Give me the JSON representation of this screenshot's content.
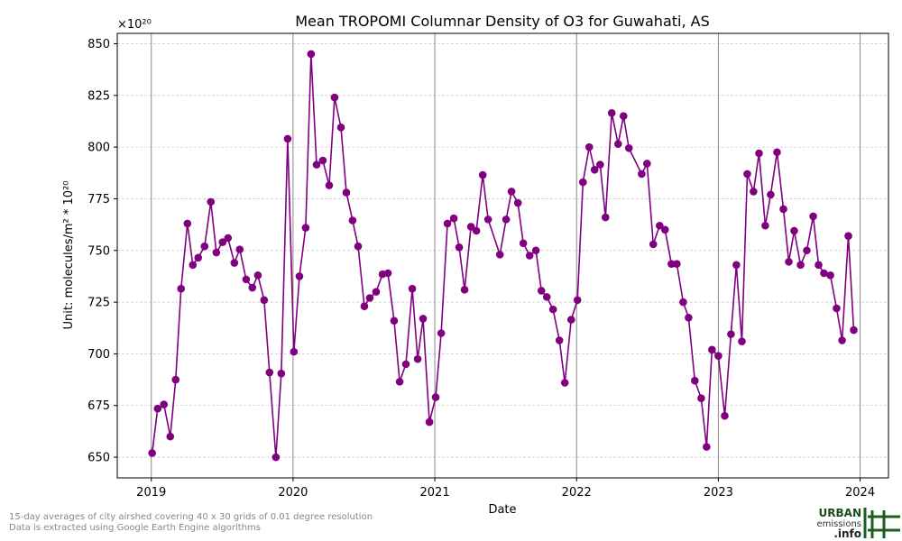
{
  "chart_data": {
    "type": "line",
    "title": "Mean TROPOMI Columnar Density of O3 for Guwahati, AS",
    "offset_label": "×10²⁰",
    "x_label": "Date",
    "y_label": "Unit: molecules/m² * 10²⁰",
    "color": "#800080",
    "grid": true,
    "xlim": [
      2018.76,
      2024.2
    ],
    "xticks": [
      2019,
      2020,
      2021,
      2022,
      2023,
      2024
    ],
    "ylim": [
      640,
      855
    ],
    "yticks": [
      650,
      675,
      700,
      725,
      750,
      775,
      800,
      825,
      850
    ],
    "x": [
      2019.006,
      2019.045,
      2019.089,
      2019.134,
      2019.172,
      2019.21,
      2019.255,
      2019.293,
      2019.331,
      2019.376,
      2019.42,
      2019.459,
      2019.503,
      2019.541,
      2019.586,
      2019.624,
      2019.669,
      2019.713,
      2019.752,
      2019.796,
      2019.834,
      2019.879,
      2019.917,
      2019.962,
      2020.006,
      2020.045,
      2020.089,
      2020.127,
      2020.166,
      2020.21,
      2020.255,
      2020.293,
      2020.338,
      2020.376,
      2020.42,
      2020.459,
      2020.503,
      2020.541,
      2020.586,
      2020.631,
      2020.669,
      2020.713,
      2020.752,
      2020.796,
      2020.841,
      2020.879,
      2020.917,
      2020.962,
      2021.006,
      2021.045,
      2021.089,
      2021.134,
      2021.172,
      2021.21,
      2021.255,
      2021.293,
      2021.338,
      2021.376,
      2021.459,
      2021.503,
      2021.541,
      2021.586,
      2021.624,
      2021.669,
      2021.713,
      2021.752,
      2021.79,
      2021.834,
      2021.879,
      2021.917,
      2021.962,
      2022.006,
      2022.045,
      2022.089,
      2022.127,
      2022.166,
      2022.204,
      2022.248,
      2022.293,
      2022.331,
      2022.369,
      2022.459,
      2022.497,
      2022.541,
      2022.586,
      2022.624,
      2022.669,
      2022.707,
      2022.752,
      2022.79,
      2022.834,
      2022.879,
      2022.917,
      2022.955,
      2023.0,
      2023.045,
      2023.089,
      2023.127,
      2023.166,
      2023.204,
      2023.248,
      2023.287,
      2023.331,
      2023.369,
      2023.414,
      2023.459,
      2023.497,
      2023.535,
      2023.58,
      2023.624,
      2023.669,
      2023.707,
      2023.745,
      2023.79,
      2023.834,
      2023.873,
      2023.917,
      2023.955
    ],
    "values": [
      652,
      673.5,
      675.5,
      660,
      687.5,
      731.5,
      763,
      743,
      746.5,
      752,
      773.5,
      749,
      754,
      756,
      744,
      750.5,
      736,
      732,
      738,
      726,
      691,
      650,
      690.5,
      804,
      701,
      737.5,
      761,
      845,
      791.5,
      793.5,
      781.5,
      824,
      809.5,
      778,
      764.5,
      752,
      723,
      727,
      730,
      738.5,
      739,
      716,
      686.5,
      695,
      731.5,
      697.5,
      717,
      667,
      679,
      710,
      763,
      765.5,
      751.5,
      731,
      761.5,
      759.5,
      786.5,
      765,
      748,
      765,
      778.5,
      773,
      753.5,
      747.5,
      750,
      730.5,
      727.5,
      721.5,
      706.5,
      686,
      716.5,
      726,
      783,
      800,
      789,
      791.5,
      766,
      816.5,
      801.5,
      815,
      799.5,
      787,
      792,
      753,
      762,
      760,
      743.5,
      743.5,
      725,
      717.5,
      687,
      678.5,
      655,
      702,
      699,
      670,
      709.5,
      743,
      706,
      787,
      778.5,
      797,
      762,
      777,
      797.5,
      770,
      744.5,
      759.5,
      743,
      750,
      766.5,
      743,
      739,
      738,
      722,
      706.5,
      757,
      711.5
    ]
  },
  "footer": {
    "notes": [
      "15-day averages of city airshed covering 40 x 30 grids of 0.01 degree resolution",
      "Data is extracted using Google Earth Engine algorithms"
    ],
    "logo": [
      "URBAN",
      "emissions",
      ".info"
    ]
  }
}
